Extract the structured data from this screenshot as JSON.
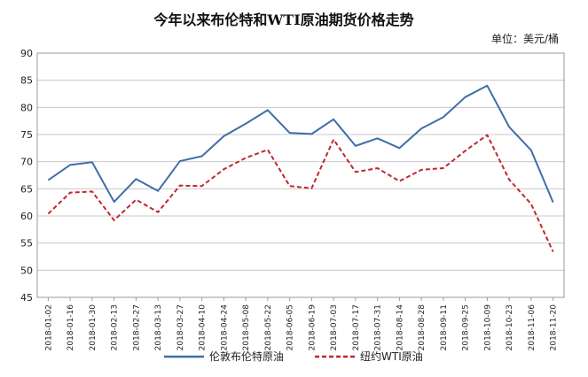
{
  "chart_data": {
    "type": "line",
    "title": "今年以来布伦特和WTI原油期货价格走势",
    "unit_label": "单位：美元/桶",
    "xlabel": "",
    "ylabel": "",
    "ylim": [
      45,
      90
    ],
    "yticks": [
      45,
      50,
      55,
      60,
      65,
      70,
      75,
      80,
      85,
      90
    ],
    "grid": true,
    "legend_position": "bottom",
    "x": [
      "2018-01-02",
      "2018-01-16",
      "2018-01-30",
      "2018-02-13",
      "2018-02-27",
      "2018-03-13",
      "2018-03-27",
      "2018-04-10",
      "2018-04-24",
      "2018-05-08",
      "2018-05-22",
      "2018-06-05",
      "2018-06-19",
      "2018-07-03",
      "2018-07-17",
      "2018-07-31",
      "2018-08-14",
      "2018-08-28",
      "2018-09-11",
      "2018-09-25",
      "2018-10-09",
      "2018-10-23",
      "2018-11-06",
      "2018-11-20"
    ],
    "series": [
      {
        "name": "伦敦布伦特原油",
        "color": "#3e6ea9",
        "dash": "solid",
        "values": [
          66.6,
          69.4,
          69.9,
          62.6,
          66.8,
          64.6,
          70.1,
          71.0,
          74.7,
          77.0,
          79.5,
          75.3,
          75.1,
          77.8,
          72.9,
          74.3,
          72.5,
          76.1,
          78.2,
          81.9,
          84.0,
          76.4,
          72.1,
          62.5
        ]
      },
      {
        "name": "纽约WTI原油",
        "color": "#c0282d",
        "dash": "dashed",
        "values": [
          60.4,
          64.3,
          64.5,
          59.2,
          63.0,
          60.7,
          65.6,
          65.5,
          68.6,
          70.7,
          72.2,
          65.5,
          65.1,
          74.1,
          68.1,
          68.8,
          66.4,
          68.5,
          68.8,
          72.0,
          74.9,
          66.7,
          62.2,
          53.4
        ]
      }
    ]
  }
}
